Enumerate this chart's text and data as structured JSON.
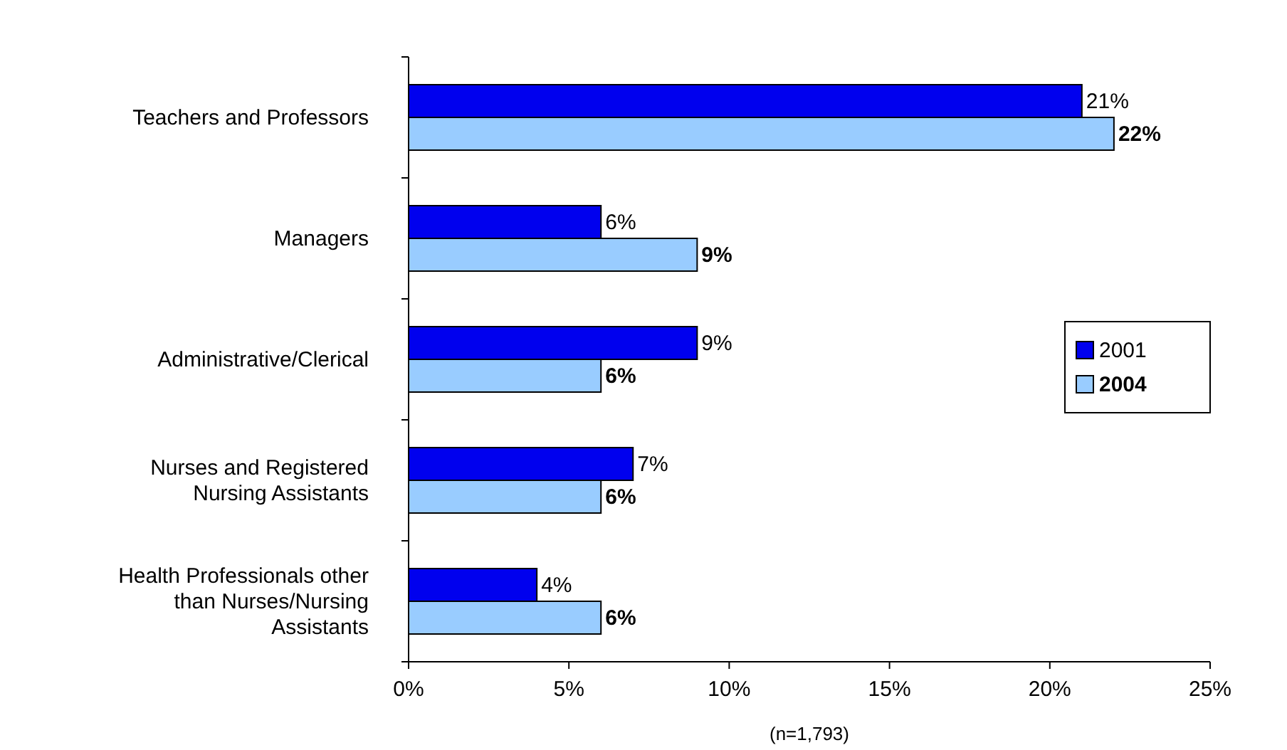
{
  "chart_data": {
    "type": "bar",
    "orientation": "horizontal",
    "categories": [
      "Teachers and Professors",
      "Managers",
      "Administrative/Clerical",
      "Nurses and Registered Nursing Assistants",
      "Health Professionals other than Nurses/Nursing Assistants"
    ],
    "series": [
      {
        "name": "2001",
        "color": "#0000ee",
        "values": [
          21,
          6,
          9,
          7,
          4
        ],
        "value_labels": [
          "21%",
          "6%",
          "9%",
          "7%",
          "4%"
        ]
      },
      {
        "name": "2004",
        "color": "#99ccff",
        "values": [
          22,
          9,
          6,
          6,
          6
        ],
        "value_labels": [
          "22%",
          "9%",
          "6%",
          "6%",
          "6%"
        ]
      }
    ],
    "xlim": [
      0,
      25
    ],
    "xticks": [
      {
        "value": 0,
        "label": "0%"
      },
      {
        "value": 5,
        "label": "5%"
      },
      {
        "value": 10,
        "label": "10%"
      },
      {
        "value": 15,
        "label": "15%"
      },
      {
        "value": 20,
        "label": "20%"
      },
      {
        "value": 25,
        "label": "25%"
      }
    ],
    "annotations": [
      "(n=1,793)"
    ],
    "legend": "right",
    "grid": false
  }
}
